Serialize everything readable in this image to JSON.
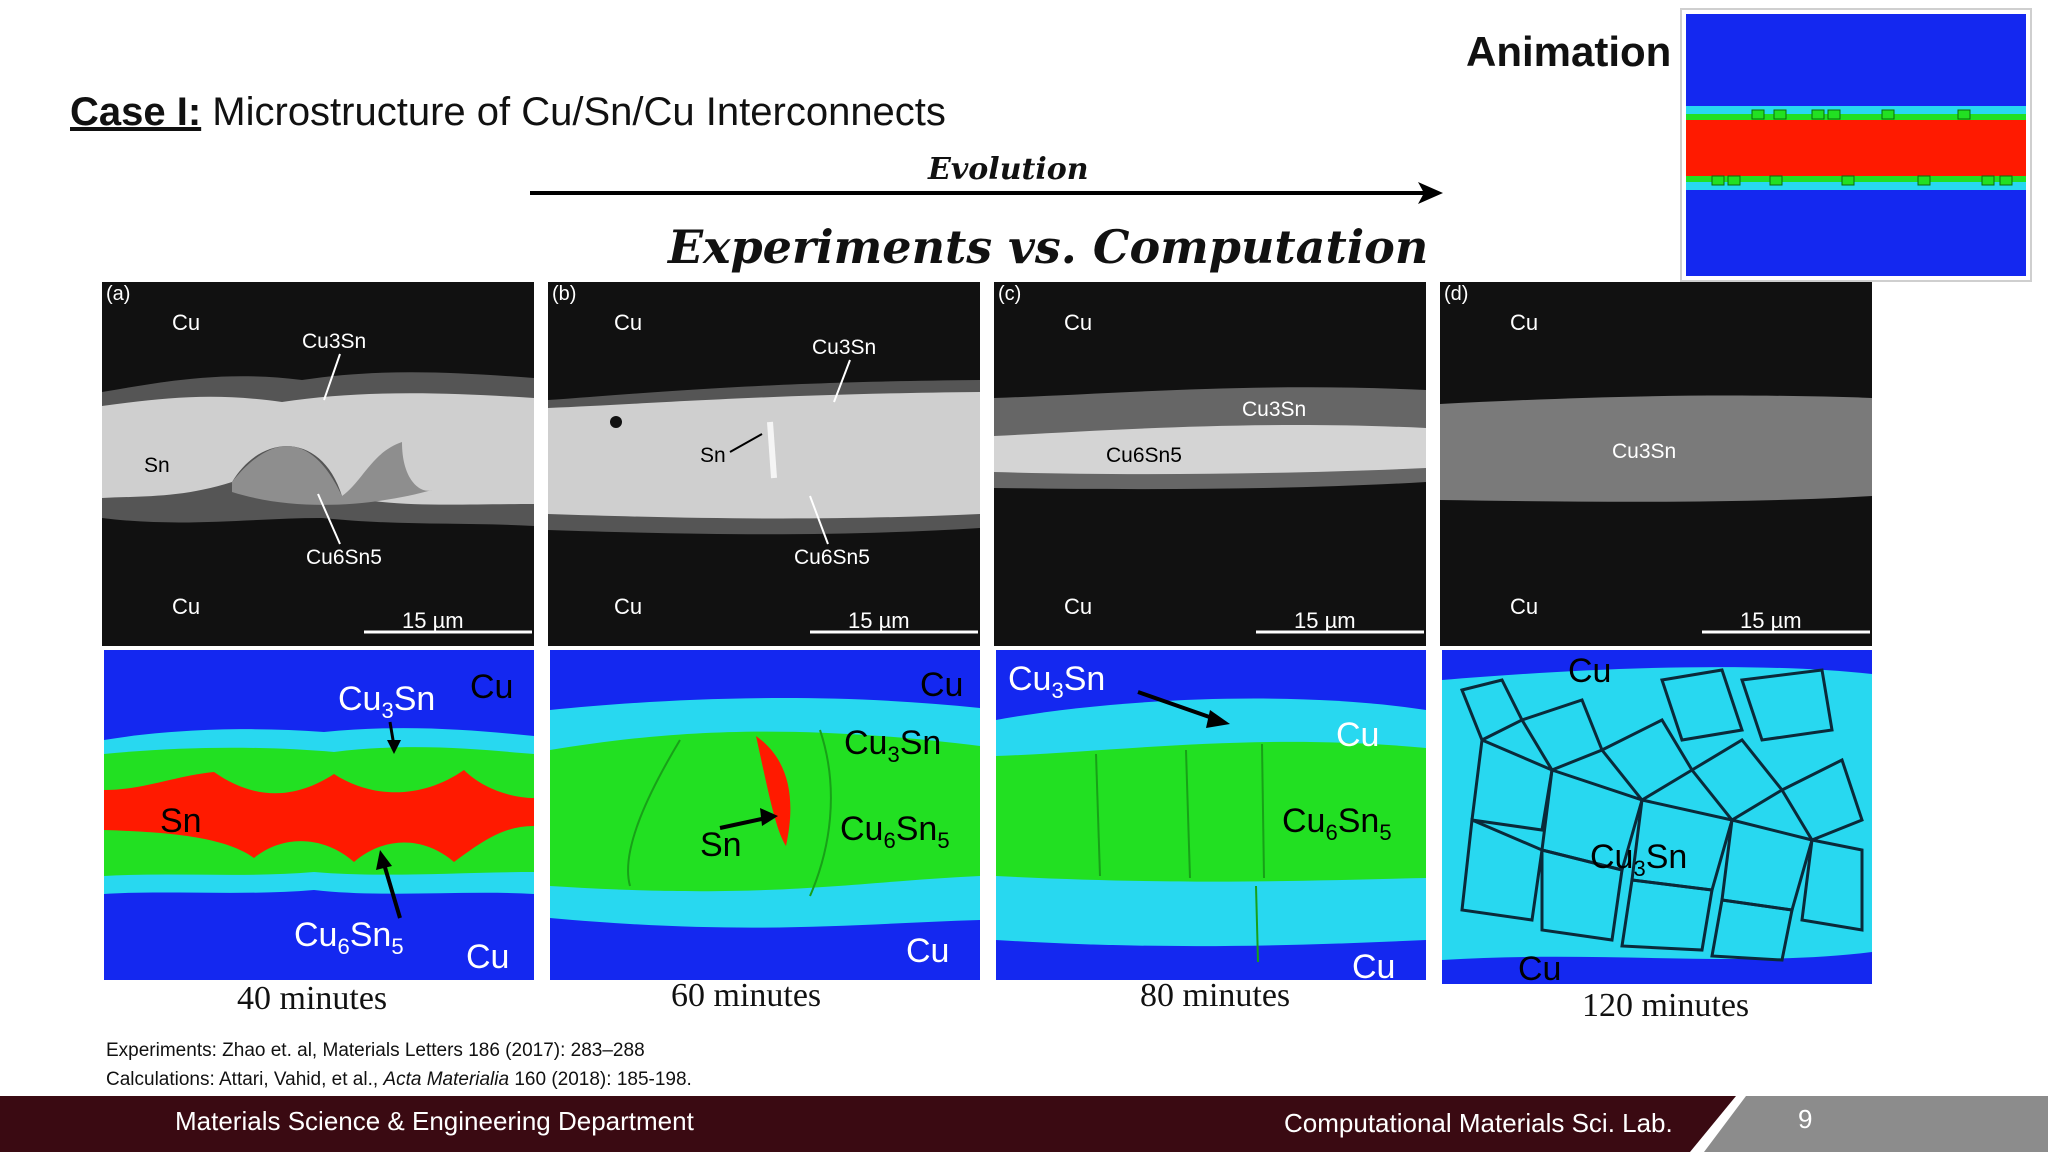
{
  "header": {
    "case_lead": "Case I:",
    "case_title": " Microstructure of Cu/Sn/Cu Interconnects",
    "animation_label": "Animation",
    "evolution_label": "Evolution",
    "headline": "Experiments vs. Computation"
  },
  "panels": [
    {
      "id": "a",
      "letter": "(a)",
      "top": "Cu",
      "bottom": "Cu",
      "scale": "15 µm",
      "caption": "40 minutes",
      "labels": [
        "Cu3Sn",
        "Sn",
        "Cu6Sn5"
      ],
      "sim_labels": {
        "cu_top": "Cu",
        "cu3sn": "Cu",
        "cu3sn_sub": "3",
        "cu3sn_tail": "Sn",
        "sn": "Sn",
        "cu6sn5_a": "Cu",
        "cu6sn5_sub1": "6",
        "cu6sn5_b": "Sn",
        "cu6sn5_sub2": "5",
        "cu_bottom": "Cu"
      }
    },
    {
      "id": "b",
      "letter": "(b)",
      "top": "Cu",
      "bottom": "Cu",
      "scale": "15 µm",
      "caption": "60 minutes",
      "labels": [
        "Cu3Sn",
        "Sn",
        "Cu6Sn5"
      ],
      "sim_labels": {
        "cu_top": "Cu",
        "cu3sn": "Cu",
        "cu3sn_sub": "3",
        "cu3sn_tail": "Sn",
        "sn": "Sn",
        "cu6sn5_a": "Cu",
        "cu6sn5_sub1": "6",
        "cu6sn5_b": "Sn",
        "cu6sn5_sub2": "5",
        "cu_bottom": "Cu"
      }
    },
    {
      "id": "c",
      "letter": "(c)",
      "top": "Cu",
      "bottom": "Cu",
      "scale": "15 µm",
      "caption": "80 minutes",
      "labels": [
        "Cu3Sn",
        "Cu6Sn5"
      ],
      "sim_labels": {
        "cu3sn": "Cu",
        "cu3sn_sub": "3",
        "cu3sn_tail": "Sn",
        "cu_mid": "Cu",
        "cu6sn5_a": "Cu",
        "cu6sn5_sub1": "6",
        "cu6sn5_b": "Sn",
        "cu6sn5_sub2": "5",
        "cu_bottom": "Cu"
      }
    },
    {
      "id": "d",
      "letter": "(d)",
      "top": "Cu",
      "bottom": "Cu",
      "scale": "15 µm",
      "caption": "120 minutes",
      "labels": [
        "Cu3Sn"
      ],
      "sim_labels": {
        "cu_top": "Cu",
        "cu3sn": "Cu",
        "cu3sn_sub": "3",
        "cu3sn_tail": "Sn",
        "cu_bottom": "Cu"
      }
    }
  ],
  "references": {
    "line1": "Experiments: Zhao et. al, Materials Letters 186 (2017): 283–288",
    "line2_a": "Calculations: Attari, Vahid, et al., ",
    "line2_b": "Acta Materialia",
    "line2_c": " 160 (2018): 185-198."
  },
  "footer": {
    "left": "Materials Science & Engineering Department",
    "right": "Computational Materials Sci. Lab.",
    "page": "9"
  },
  "colors": {
    "footer_dark": "#3a0a12",
    "footer_grey": "#8c8c8c",
    "sim_blue": "#1428f0",
    "sim_cyan": "#28d8f0",
    "sim_green": "#22e022",
    "sim_red": "#ff1a00"
  }
}
